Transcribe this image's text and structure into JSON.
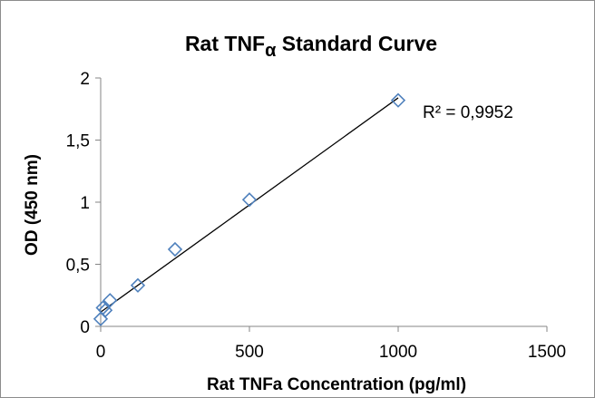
{
  "chart_data": {
    "type": "scatter",
    "title": "Rat TNF",
    "title_subscript": "α",
    "title_suffix": " Standard Curve",
    "xlabel": "Rat TNFa Concentration (pg/ml)",
    "ylabel": "OD (450 nm)",
    "xlim": [
      0,
      1500
    ],
    "ylim": [
      0,
      2
    ],
    "x_ticks": [
      0,
      500,
      1000,
      1500
    ],
    "y_ticks": [
      0,
      0.5,
      1,
      1.5,
      2
    ],
    "x_tick_labels": [
      "0",
      "500",
      "1000",
      "1500"
    ],
    "y_tick_labels": [
      "0",
      "0,5",
      "1",
      "1,5",
      "2"
    ],
    "series": [
      {
        "marker": "diamond-open",
        "color": "#4f81bd",
        "x": [
          0,
          7.8,
          15.6,
          31.25,
          125,
          250,
          500,
          1000
        ],
        "y": [
          0.06,
          0.15,
          0.13,
          0.21,
          0.33,
          0.62,
          1.02,
          1.82
        ]
      }
    ],
    "trendline": {
      "type": "linear",
      "x": [
        0,
        1000
      ],
      "y": [
        0.115,
        1.84
      ],
      "color": "#000000"
    },
    "annotation": "R² = 0,9952",
    "grid": false,
    "legend": "none"
  }
}
